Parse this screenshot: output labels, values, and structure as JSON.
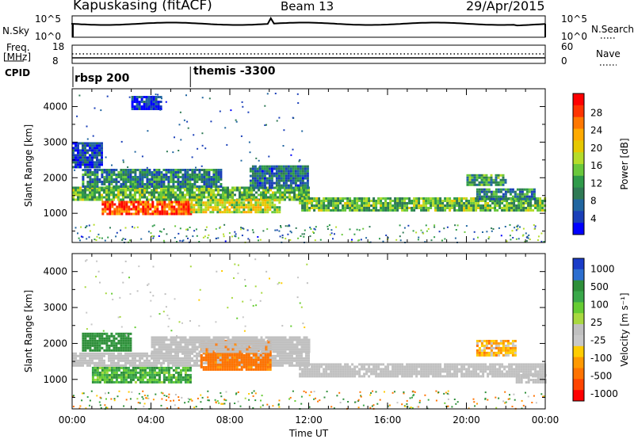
{
  "header": {
    "station": "Kapuskasing (fitACF)",
    "beam": "Beam 13",
    "date": "29/Apr/2015"
  },
  "aux_panels": {
    "nsky_label": "N.Sky",
    "nsky_ticks": [
      "10^5",
      "10^0"
    ],
    "nsearch_label": "N.Search",
    "freq_label": "Freq.",
    "freq_unit": "[MHz]",
    "freq_ticks": [
      "18",
      "8"
    ],
    "nave_label": "Nave",
    "nave_ticks": [
      "60",
      "0"
    ],
    "cpid_label": "CPID",
    "cpid_events": [
      {
        "label": "rbsp 200",
        "hour": 0.0
      },
      {
        "label": "themis -3300",
        "hour": 6.0
      }
    ]
  },
  "colorbars": {
    "power": {
      "title": "Power [dB]",
      "ticks": [
        "28",
        "24",
        "20",
        "16",
        "12",
        "8",
        "4"
      ],
      "colors": [
        "#ff0000",
        "#ff3300",
        "#ff7700",
        "#ffaa00",
        "#e6c800",
        "#b5dc2a",
        "#6ac83c",
        "#2f9a4a",
        "#2f7a55",
        "#2166a0",
        "#1a3fb8",
        "#0000ff"
      ]
    },
    "velocity": {
      "title": "Velocity [m s⁻¹]",
      "ticks": [
        "1000",
        "500",
        "100",
        "25",
        "-25",
        "-100",
        "-500",
        "-1000"
      ],
      "colors": [
        "#1a3cc8",
        "#2d6fd0",
        "#2e8f3a",
        "#3aa84a",
        "#66cc33",
        "#a8d840",
        "#c0c0c0",
        "#c8c8c8",
        "#ffcc00",
        "#ff9900",
        "#ff7300",
        "#ff4400",
        "#ff0000"
      ]
    }
  },
  "chart_data": [
    {
      "type": "heatmap",
      "name": "power",
      "title": "",
      "xlabel": "Time UT",
      "ylabel": "Slant Range [km]",
      "x_ticks": [
        "00:00",
        "04:00",
        "08:00",
        "12:00",
        "16:00",
        "20:00",
        "00:00"
      ],
      "y_ticks": [
        1000,
        2000,
        3000,
        4000
      ],
      "xlim": [
        0,
        24
      ],
      "ylim": [
        180,
        4500
      ],
      "bands": [
        {
          "t0": 0.0,
          "t1": 12.0,
          "r0": 1400,
          "r1": 1750,
          "value": 14
        },
        {
          "t0": 0.5,
          "t1": 7.5,
          "r0": 1750,
          "r1": 2250,
          "value": 10
        },
        {
          "t0": 1.5,
          "t1": 6.0,
          "r0": 950,
          "r1": 1350,
          "value": 26
        },
        {
          "t0": 6.0,
          "t1": 10.5,
          "r0": 1000,
          "r1": 1400,
          "value": 17
        },
        {
          "t0": 9.0,
          "t1": 12.0,
          "r0": 1700,
          "r1": 2350,
          "value": 9
        },
        {
          "t0": 11.5,
          "t1": 24.0,
          "r0": 1100,
          "r1": 1450,
          "value": 14
        },
        {
          "t0": 20.5,
          "t1": 23.5,
          "r0": 1400,
          "r1": 1700,
          "value": 10
        },
        {
          "t0": 0.0,
          "t1": 1.5,
          "r0": 2300,
          "r1": 3000,
          "value": 6
        },
        {
          "t0": 3.0,
          "t1": 4.5,
          "r0": 3900,
          "r1": 4300,
          "value": 5
        },
        {
          "t0": 20.0,
          "t1": 22.0,
          "r0": 1800,
          "r1": 2100,
          "value": 12
        }
      ]
    },
    {
      "type": "heatmap",
      "name": "velocity",
      "title": "",
      "xlabel": "Time UT",
      "ylabel": "Slant Range [km]",
      "x_ticks": [
        "00:00",
        "04:00",
        "08:00",
        "12:00",
        "16:00",
        "20:00",
        "00:00"
      ],
      "y_ticks": [
        1000,
        2000,
        3000,
        4000
      ],
      "xlim": [
        0,
        24
      ],
      "ylim": [
        180,
        4500
      ],
      "bands": [
        {
          "t0": 0.0,
          "t1": 12.0,
          "r0": 1400,
          "r1": 1750,
          "value": 0
        },
        {
          "t0": 11.5,
          "t1": 24.0,
          "r0": 1100,
          "r1": 1450,
          "value": 0
        },
        {
          "t0": 1.0,
          "t1": 6.0,
          "r0": 900,
          "r1": 1350,
          "value": 80
        },
        {
          "t0": 0.5,
          "t1": 3.0,
          "r0": 1800,
          "r1": 2300,
          "value": 150
        },
        {
          "t0": 6.5,
          "t1": 10.0,
          "r0": 1250,
          "r1": 2100,
          "value": -150
        },
        {
          "t0": 4.0,
          "t1": 12.0,
          "r0": 1800,
          "r1": 2200,
          "value": 0
        },
        {
          "t0": 20.5,
          "t1": 22.5,
          "r0": 1700,
          "r1": 2100,
          "value": -60
        },
        {
          "t0": 22.5,
          "t1": 24.0,
          "r0": 900,
          "r1": 1150,
          "value": 0
        }
      ]
    }
  ]
}
